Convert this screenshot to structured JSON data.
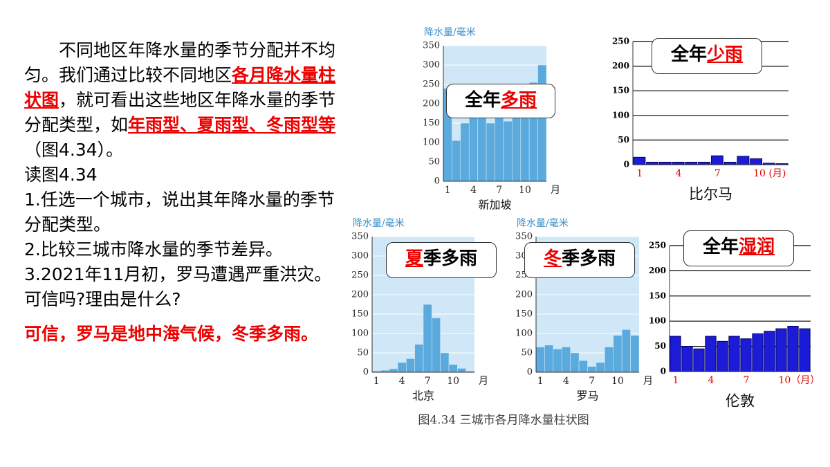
{
  "text": {
    "paragraphs": [
      [
        {
          "text": "　　不同地区年降水量的季节分配并不均匀。我们通过比较不同地区"
        },
        {
          "text": "各月降水量柱状图",
          "em": true
        },
        {
          "text": "，就可看出这些地区年降水量的季节分配类型，如"
        },
        {
          "text": "年雨型、夏雨型、冬雨型等",
          "em": true
        },
        {
          "text": "（图4.34）。"
        }
      ],
      [
        {
          "text": "读图4.34"
        }
      ],
      [
        {
          "text": "1.任选一个城市，说出其年降水量的季节分配类型。"
        }
      ],
      [
        {
          "text": "2.比较三城市降水量的季节差异。"
        }
      ],
      [
        {
          "text": "3.2021年11月初，罗马遭遇严重洪灾。可信吗?理由是什么?"
        }
      ]
    ],
    "answer": "可信，罗马是地中海气候，冬季多雨。"
  },
  "figure_caption": "图4.34  三城市各月降水量柱状图",
  "chart_data": [
    {
      "type": "bar",
      "title": "新加坡",
      "y_label": "降水量/毫米",
      "x_label": "月",
      "categories": [
        "1",
        null,
        null,
        "4",
        null,
        null,
        "7",
        null,
        null,
        "10",
        null,
        null
      ],
      "values": [
        240,
        105,
        150,
        180,
        165,
        150,
        170,
        155,
        165,
        180,
        255,
        300
      ],
      "color": "#5aaade",
      "ylim": [
        0,
        350
      ],
      "yticks": [
        0,
        50,
        100,
        150,
        200,
        250,
        300,
        350
      ],
      "grid": true,
      "annotation": [
        {
          "text": "全年"
        },
        {
          "text": "多雨",
          "em": true
        }
      ]
    },
    {
      "type": "bar",
      "title": "比尔马",
      "categories": [
        "1",
        null,
        null,
        "4",
        null,
        null,
        "7",
        null,
        null,
        "10 (月)",
        null,
        null
      ],
      "values": [
        15,
        5,
        5,
        5,
        5,
        5,
        18,
        5,
        17,
        12,
        3,
        2
      ],
      "color": "#1c1cd8",
      "ylim": [
        0,
        250
      ],
      "yticks": [
        0,
        50,
        100,
        150,
        200,
        250
      ],
      "grid": true,
      "annotation": [
        {
          "text": "全年"
        },
        {
          "text": "少雨",
          "em": true
        }
      ]
    },
    {
      "type": "bar",
      "title": "北京",
      "y_label": "降水量/毫米",
      "x_label": "月",
      "categories": [
        "1",
        null,
        null,
        "4",
        null,
        null,
        "7",
        null,
        null,
        "10",
        null,
        null
      ],
      "values": [
        3,
        5,
        9,
        25,
        35,
        72,
        175,
        140,
        50,
        20,
        10,
        3
      ],
      "color": "#5aaade",
      "ylim": [
        0,
        350
      ],
      "yticks": [
        0,
        50,
        100,
        150,
        200,
        250,
        300,
        350
      ],
      "grid": true,
      "annotation": [
        {
          "text": "夏",
          "em": true
        },
        {
          "text": "季多雨"
        }
      ]
    },
    {
      "type": "bar",
      "title": "罗马",
      "y_label": "降水量/毫米",
      "x_label": "月",
      "categories": [
        "1",
        null,
        null,
        "4",
        null,
        null,
        "7",
        null,
        null,
        "10",
        null,
        null
      ],
      "values": [
        65,
        70,
        60,
        65,
        50,
        30,
        15,
        25,
        65,
        95,
        110,
        95
      ],
      "color": "#5aaade",
      "ylim": [
        0,
        350
      ],
      "yticks": [
        0,
        50,
        100,
        150,
        200,
        250,
        300,
        350
      ],
      "grid": true,
      "annotation": [
        {
          "text": "冬",
          "em": true
        },
        {
          "text": "季多雨"
        }
      ]
    },
    {
      "type": "bar",
      "title": "伦敦",
      "categories": [
        "1",
        null,
        null,
        "4",
        null,
        null,
        "7",
        null,
        null,
        "10（月）",
        null,
        null
      ],
      "values": [
        70,
        50,
        45,
        70,
        60,
        70,
        65,
        75,
        80,
        85,
        90,
        85
      ],
      "color": "#1c1cd8",
      "ylim": [
        0,
        250
      ],
      "yticks": [
        0,
        50,
        100,
        150,
        200,
        250
      ],
      "grid": true,
      "annotation": [
        {
          "text": "全年"
        },
        {
          "text": "湿润",
          "em": true
        }
      ]
    }
  ]
}
